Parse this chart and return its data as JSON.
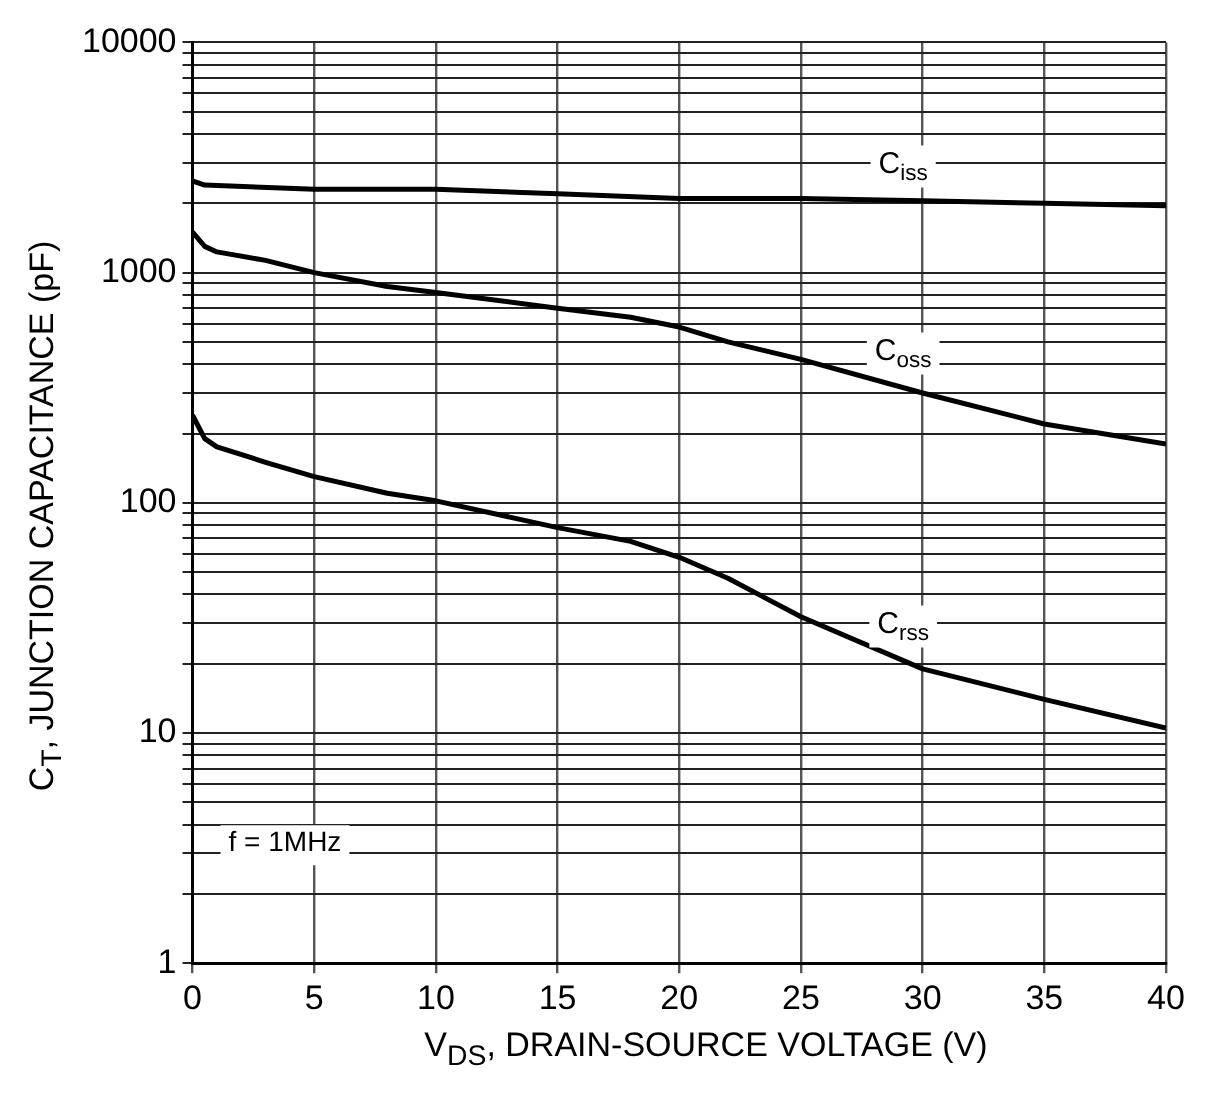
{
  "chart_data": {
    "type": "line",
    "xlabel": "V$_{DS}$, DRAIN-SOURCE VOLTAGE (V)",
    "ylabel": "C$_{T}$, JUNCTION CAPACITANCE (pF)",
    "log": "y",
    "grid": true,
    "legend": false,
    "marker": "none",
    "line_style": "solid",
    "xlim": [
      0,
      40
    ],
    "xticks": [
      0,
      5,
      10,
      15,
      20,
      25,
      30,
      35,
      40
    ],
    "ylim": [
      1,
      10000
    ],
    "yticks": [
      1,
      {
        "value": 2,
        "label": null
      },
      {
        "value": 3,
        "label": null
      },
      {
        "value": 4,
        "label": null
      },
      {
        "value": 5,
        "label": null
      },
      {
        "value": 6,
        "label": null
      },
      {
        "value": 7,
        "label": null
      },
      {
        "value": 8,
        "label": null
      },
      {
        "value": 9,
        "label": null
      },
      10,
      {
        "value": 20,
        "label": null
      },
      {
        "value": 30,
        "label": null
      },
      {
        "value": 40,
        "label": null
      },
      {
        "value": 50,
        "label": null
      },
      {
        "value": 60,
        "label": null
      },
      {
        "value": 70,
        "label": null
      },
      {
        "value": 80,
        "label": null
      },
      {
        "value": 90,
        "label": null
      },
      100,
      {
        "value": 200,
        "label": null
      },
      {
        "value": 300,
        "label": null
      },
      {
        "value": 400,
        "label": null
      },
      {
        "value": 500,
        "label": null
      },
      {
        "value": 600,
        "label": null
      },
      {
        "value": 700,
        "label": null
      },
      {
        "value": 800,
        "label": null
      },
      {
        "value": 900,
        "label": null
      },
      1000,
      {
        "value": 2000,
        "label": null
      },
      {
        "value": 3000,
        "label": null
      },
      {
        "value": 4000,
        "label": null
      },
      {
        "value": 5000,
        "label": null
      },
      {
        "value": 6000,
        "label": null
      },
      {
        "value": 7000,
        "label": null
      },
      {
        "value": 8000,
        "label": null
      },
      {
        "value": 9000,
        "label": null
      },
      10000
    ],
    "annotations": [
      "f = 1MHz"
    ],
    "series": [
      {
        "name": "C$_{iss}$",
        "color": "#000000",
        "x": [
          0,
          0.5,
          5,
          10,
          15,
          20,
          25,
          30,
          35,
          40
        ],
        "values": [
          2500,
          2400,
          2300,
          2300,
          2200,
          2100,
          2100,
          2050,
          2000,
          1950
        ]
      },
      {
        "name": "C$_{oss}$",
        "color": "#000000",
        "x": [
          0,
          0.5,
          1,
          3,
          5,
          8,
          10,
          15,
          18,
          20,
          22,
          25,
          30,
          35,
          40
        ],
        "values": [
          1500,
          1300,
          1230,
          1130,
          1000,
          870,
          820,
          700,
          640,
          580,
          500,
          420,
          300,
          220,
          180
        ]
      },
      {
        "name": "C$_{rss}$",
        "color": "#000000",
        "x": [
          0,
          0.5,
          1,
          3,
          5,
          8,
          10,
          15,
          18,
          20,
          22,
          25,
          30,
          35,
          40
        ],
        "values": [
          240,
          190,
          175,
          150,
          130,
          110,
          102,
          78,
          68,
          58,
          47,
          32,
          19,
          14,
          10.5
        ]
      }
    ]
  }
}
